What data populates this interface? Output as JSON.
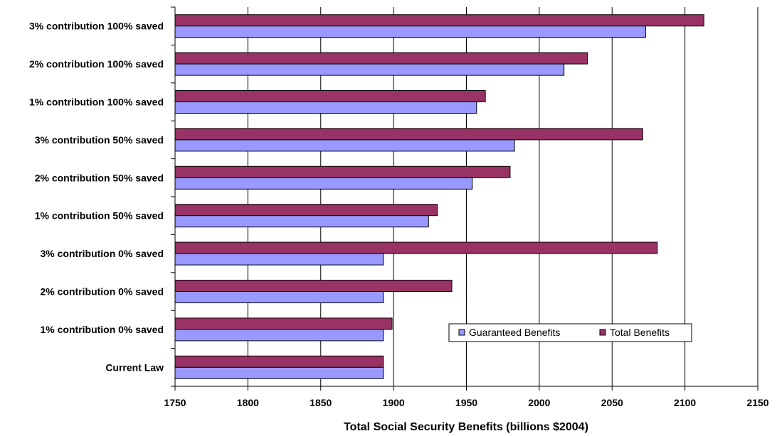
{
  "chart_data": {
    "type": "bar",
    "orientation": "horizontal",
    "categories": [
      "Current Law",
      "1% contribution 0% saved",
      "2% contribution 0% saved",
      "3% contribution 0% saved",
      "1% contribution 50% saved",
      "2% contribution 50% saved",
      "3% contribution 50% saved",
      "1% contribution 100% saved",
      "2% contribution 100% saved",
      "3% contribution 100% saved"
    ],
    "series": [
      {
        "name": "Guaranteed Benefits",
        "color": "#9999ff",
        "values": [
          1893,
          1893,
          1893,
          1893,
          1924,
          1954,
          1983,
          1957,
          2017,
          2073
        ]
      },
      {
        "name": "Total Benefits",
        "color": "#993366",
        "values": [
          1893,
          1899,
          1940,
          2081,
          1930,
          1980,
          2071,
          1963,
          2033,
          2113
        ]
      }
    ],
    "xlabel": "Total Social Security Benefits (billions $2004)",
    "ylabel": "",
    "title": "",
    "xlim": [
      1750,
      2150
    ],
    "xticks": [
      1750,
      1800,
      1850,
      1900,
      1950,
      2000,
      2050,
      2100,
      2150
    ],
    "grid": "vertical",
    "legend_position": "lower-right"
  }
}
